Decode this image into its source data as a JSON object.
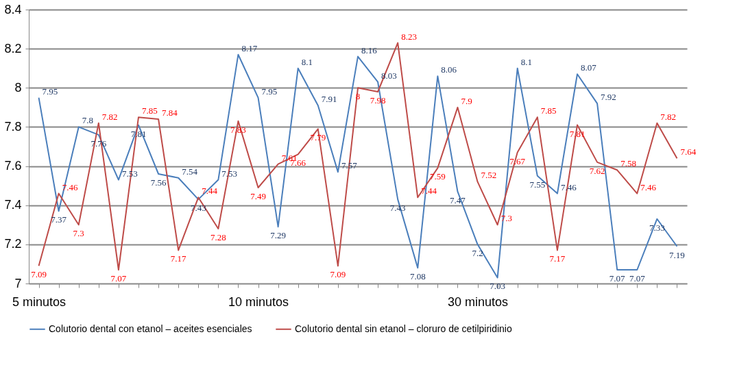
{
  "chart_data": {
    "type": "line",
    "categories": [
      "5 minutos",
      null,
      null,
      null,
      null,
      null,
      null,
      null,
      null,
      null,
      null,
      "10 minutos",
      null,
      null,
      null,
      null,
      null,
      null,
      null,
      null,
      null,
      null,
      "30 minutos",
      null,
      null,
      null,
      null,
      null,
      null,
      null,
      null,
      null,
      null
    ],
    "series": [
      {
        "name": "Colutorio dental con etanol – aceites esenciales",
        "color": "#4a7ebb",
        "values": [
          7.95,
          7.37,
          7.8,
          7.76,
          7.53,
          7.81,
          7.56,
          7.54,
          7.43,
          7.53,
          8.17,
          7.95,
          7.29,
          8.1,
          7.91,
          7.57,
          8.16,
          8.03,
          7.43,
          7.08,
          8.06,
          7.47,
          7.2,
          7.03,
          8.1,
          7.55,
          7.46,
          8.07,
          7.92,
          7.07,
          7.07,
          7.33,
          7.19
        ]
      },
      {
        "name": "Colutorio dental sin etanol – cloruro de cetilpiridinio",
        "color": "#be4b48",
        "values": [
          7.09,
          7.46,
          7.3,
          7.82,
          7.07,
          7.85,
          7.84,
          7.17,
          7.44,
          7.28,
          7.83,
          7.49,
          7.61,
          7.66,
          7.79,
          7.09,
          8,
          7.98,
          8.23,
          7.44,
          7.59,
          7.9,
          7.52,
          7.3,
          7.67,
          7.85,
          7.17,
          7.81,
          7.62,
          7.58,
          7.46,
          7.82,
          7.64
        ]
      }
    ],
    "ylim": [
      7,
      8.4
    ],
    "yticks": [
      7,
      7.2,
      7.4,
      7.6,
      7.8,
      8,
      8.2,
      8.4
    ],
    "grid": "y",
    "legend": "bottom",
    "data_labels": true,
    "marker": "none",
    "line_style": "solid"
  }
}
